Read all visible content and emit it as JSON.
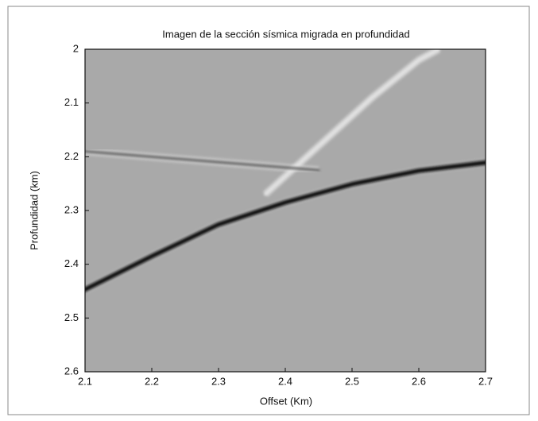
{
  "chart_data": {
    "type": "line",
    "title": "Imagen de la sección sísmica migrada en profundidad",
    "x_label": "Offset (Km)",
    "y_label": "Profundidad (km)",
    "xlim": [
      2.1,
      2.7
    ],
    "xticks": [
      2.1,
      2.2,
      2.3,
      2.4,
      2.5,
      2.6,
      2.7
    ],
    "ylim": [
      2,
      2.6
    ],
    "yticks": [
      2,
      2.1,
      2.2,
      2.3,
      2.4,
      2.5,
      2.6
    ],
    "y_inverted": true,
    "background": "#a9a9a9",
    "series": [
      {
        "color": "#e8e8e8",
        "x": [
          2.37,
          2.45,
          2.53,
          2.6,
          2.63
        ],
        "values": [
          2.27,
          2.18,
          2.09,
          2.02,
          2
        ]
      },
      {
        "color": "#555555",
        "x": [
          2.1,
          2.2,
          2.3,
          2.4,
          2.45
        ],
        "values": [
          2.19,
          2.2,
          2.21,
          2.22,
          2.225
        ]
      },
      {
        "color": "#0a0a0a",
        "x": [
          2.1,
          2.2,
          2.3,
          2.4,
          2.5,
          2.6,
          2.7
        ],
        "values": [
          2.447,
          2.385,
          2.326,
          2.285,
          2.251,
          2.226,
          2.211
        ]
      }
    ]
  }
}
